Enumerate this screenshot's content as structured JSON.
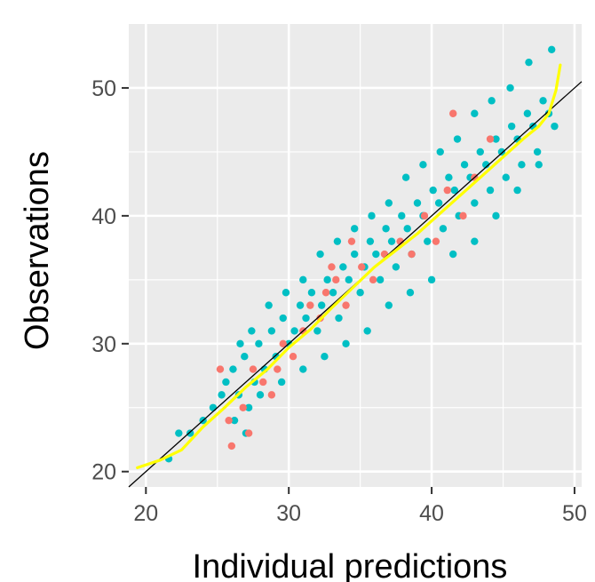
{
  "chart_data": {
    "type": "scatter",
    "title": "",
    "xlabel": "Individual predictions",
    "ylabel": "Observations",
    "xlim": [
      18.8,
      50.5
    ],
    "ylim": [
      18.8,
      55
    ],
    "x_ticks": [
      20,
      30,
      40,
      50
    ],
    "y_ticks": [
      20,
      30,
      40,
      50
    ],
    "x_minor": [
      25,
      35,
      45
    ],
    "y_minor": [
      25,
      35,
      45
    ],
    "grid": true,
    "legend": "none",
    "colors": {
      "panel": "#ebebeb",
      "grid": "#ffffff",
      "series_teal": "#00bfc4",
      "series_red": "#f8766d",
      "smooth": "#ffff00",
      "identity": "#000000"
    },
    "reference_line": {
      "kind": "identity",
      "points": [
        [
          18.8,
          18.8
        ],
        [
          50.5,
          50.5
        ]
      ]
    },
    "smooth_line": {
      "points": [
        [
          19.4,
          20.3
        ],
        [
          21,
          20.9
        ],
        [
          22.5,
          21.7
        ],
        [
          24,
          23.5
        ],
        [
          25.5,
          25.0
        ],
        [
          27,
          26.6
        ],
        [
          28.5,
          28.0
        ],
        [
          30,
          29.7
        ],
        [
          31.5,
          31.1
        ],
        [
          33,
          32.8
        ],
        [
          34.5,
          34.4
        ],
        [
          36,
          36.0
        ],
        [
          37.5,
          37.3
        ],
        [
          39,
          38.6
        ],
        [
          40.5,
          40.1
        ],
        [
          42,
          41.6
        ],
        [
          43.5,
          43.1
        ],
        [
          45,
          44.6
        ],
        [
          46.5,
          46.1
        ],
        [
          47.5,
          47.0
        ],
        [
          48.2,
          48.0
        ],
        [
          48.7,
          49.8
        ],
        [
          49.0,
          51.8
        ]
      ]
    },
    "series": [
      {
        "points": [
          [
            21.6,
            21
          ],
          [
            22.3,
            23
          ],
          [
            23.1,
            23
          ],
          [
            24,
            24
          ],
          [
            24.7,
            25
          ],
          [
            25.3,
            26
          ],
          [
            25.6,
            27
          ],
          [
            26.1,
            28
          ],
          [
            26.5,
            26
          ],
          [
            26.9,
            29
          ],
          [
            27.2,
            25
          ],
          [
            27.6,
            27
          ],
          [
            27.9,
            30
          ],
          [
            28.3,
            28
          ],
          [
            28.8,
            31
          ],
          [
            29.1,
            29
          ],
          [
            29.6,
            32
          ],
          [
            30,
            30
          ],
          [
            30.4,
            31
          ],
          [
            30.8,
            33
          ],
          [
            31.2,
            32
          ],
          [
            31.6,
            34
          ],
          [
            32,
            31
          ],
          [
            32.3,
            33
          ],
          [
            32.7,
            35
          ],
          [
            33.1,
            34
          ],
          [
            33.5,
            32
          ],
          [
            33.8,
            36
          ],
          [
            34.2,
            35
          ],
          [
            34.6,
            37
          ],
          [
            35,
            34
          ],
          [
            35.3,
            36
          ],
          [
            35.7,
            38
          ],
          [
            36.1,
            37
          ],
          [
            36.4,
            35
          ],
          [
            36.8,
            39
          ],
          [
            37.2,
            38
          ],
          [
            37.5,
            36
          ],
          [
            37.9,
            40
          ],
          [
            38.3,
            39
          ],
          [
            38.6,
            37
          ],
          [
            39,
            41
          ],
          [
            39.4,
            40
          ],
          [
            39.7,
            38
          ],
          [
            40.1,
            42
          ],
          [
            40.5,
            41
          ],
          [
            40.8,
            39
          ],
          [
            41.2,
            43
          ],
          [
            41.6,
            42
          ],
          [
            41.9,
            40
          ],
          [
            42.3,
            44
          ],
          [
            42.7,
            43
          ],
          [
            43,
            41
          ],
          [
            43.4,
            45
          ],
          [
            43.8,
            44
          ],
          [
            44.1,
            42
          ],
          [
            44.5,
            46
          ],
          [
            44.9,
            45
          ],
          [
            45.2,
            43
          ],
          [
            45.6,
            47
          ],
          [
            46,
            46
          ],
          [
            46.3,
            44
          ],
          [
            46.7,
            48
          ],
          [
            47.1,
            47
          ],
          [
            47.4,
            45
          ],
          [
            47.8,
            49
          ],
          [
            48.2,
            48
          ],
          [
            48.4,
            53
          ],
          [
            46.8,
            52
          ],
          [
            45.5,
            50
          ],
          [
            44.2,
            49
          ],
          [
            43,
            48
          ],
          [
            41.8,
            46
          ],
          [
            40.6,
            45
          ],
          [
            39.4,
            44
          ],
          [
            38.2,
            43
          ],
          [
            37,
            41
          ],
          [
            35.8,
            40
          ],
          [
            34.6,
            39
          ],
          [
            33.4,
            38
          ],
          [
            32.2,
            37
          ],
          [
            31,
            35
          ],
          [
            29.8,
            34
          ],
          [
            28.6,
            33
          ],
          [
            27.4,
            31
          ],
          [
            26.6,
            30
          ],
          [
            26.2,
            24
          ],
          [
            27,
            23
          ],
          [
            28,
            26
          ],
          [
            29.5,
            27
          ],
          [
            31,
            28
          ],
          [
            32.5,
            29
          ],
          [
            34,
            30
          ],
          [
            35.5,
            31
          ],
          [
            37,
            33
          ],
          [
            38.5,
            34
          ],
          [
            40,
            35
          ],
          [
            41.5,
            37
          ],
          [
            43,
            38
          ],
          [
            44.5,
            40
          ],
          [
            46,
            42
          ],
          [
            47.5,
            44
          ],
          [
            48.6,
            47
          ]
        ]
      },
      {
        "points": [
          [
            25.2,
            28
          ],
          [
            25.8,
            24
          ],
          [
            26,
            22
          ],
          [
            26.8,
            25
          ],
          [
            27.2,
            23
          ],
          [
            27.5,
            28
          ],
          [
            28.2,
            27
          ],
          [
            28.8,
            26
          ],
          [
            29.2,
            28
          ],
          [
            29.6,
            30
          ],
          [
            30.3,
            29
          ],
          [
            31,
            31
          ],
          [
            31.5,
            33
          ],
          [
            32.2,
            32
          ],
          [
            32.6,
            34
          ],
          [
            33,
            36
          ],
          [
            33.3,
            35
          ],
          [
            34,
            33
          ],
          [
            34.4,
            38
          ],
          [
            35.1,
            36
          ],
          [
            35.9,
            35
          ],
          [
            36.7,
            37
          ],
          [
            37.8,
            38
          ],
          [
            38.6,
            37
          ],
          [
            39.5,
            40
          ],
          [
            40.3,
            38
          ],
          [
            41.1,
            42
          ],
          [
            42.2,
            40
          ],
          [
            43,
            43
          ],
          [
            41.5,
            48
          ],
          [
            44.1,
            46
          ]
        ]
      }
    ]
  }
}
